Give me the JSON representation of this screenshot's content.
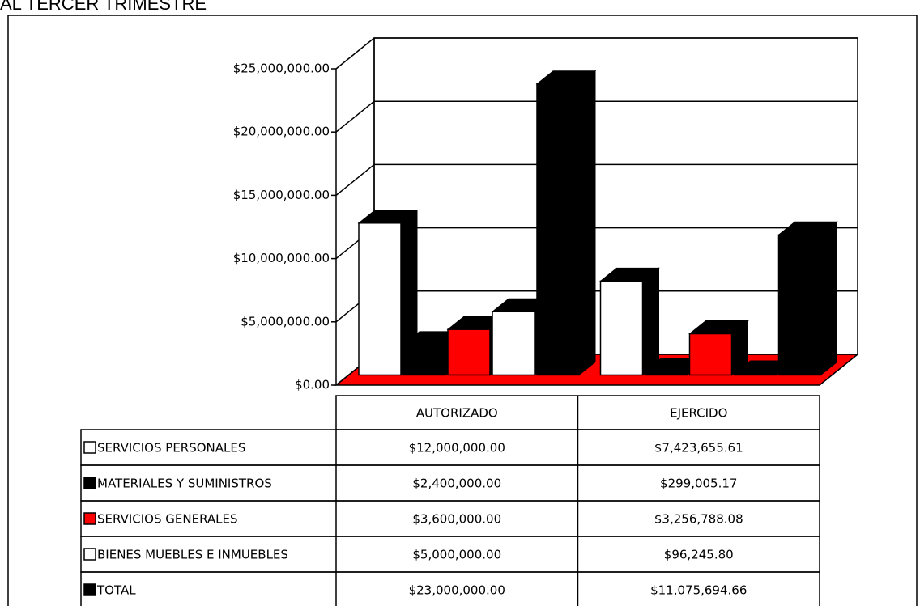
{
  "chart_data": {
    "type": "bar3d",
    "title": "AL TERCER TRIMESTRE",
    "categories": [
      "AUTORIZADO",
      "EJERCIDO"
    ],
    "series": [
      {
        "name": "SERVICIOS PERSONALES",
        "color": "#ffffff",
        "values": [
          12000000,
          7423655.61
        ],
        "value_labels": [
          "$12,000,000.00",
          "$7,423,655.61"
        ]
      },
      {
        "name": "MATERIALES Y SUMINISTROS",
        "color": "#000000",
        "values": [
          2400000,
          299005.17
        ],
        "value_labels": [
          "$2,400,000.00",
          "$299,005.17"
        ]
      },
      {
        "name": "SERVICIOS GENERALES",
        "color": "#ff0000",
        "values": [
          3600000,
          3256788.08
        ],
        "value_labels": [
          "$3,600,000.00",
          "$3,256,788.08"
        ]
      },
      {
        "name": "BIENES MUEBLES E INMUEBLES",
        "color": "#ffffff",
        "values": [
          5000000,
          96245.8
        ],
        "value_labels": [
          "$5,000,000.00",
          "$96,245.80"
        ]
      },
      {
        "name": "TOTAL",
        "color": "#000000",
        "values": [
          23000000,
          11075694.66
        ],
        "value_labels": [
          "$23,000,000.00",
          "$11,075,694.66"
        ]
      }
    ],
    "ylim": [
      0,
      25000000
    ],
    "yticks": [
      {
        "value": 0,
        "label": "$0.00"
      },
      {
        "value": 5000000,
        "label": "$5,000,000.00"
      },
      {
        "value": 10000000,
        "label": "$10,000,000.00"
      },
      {
        "value": 15000000,
        "label": "$15,000,000.00"
      },
      {
        "value": 20000000,
        "label": "$20,000,000.00"
      },
      {
        "value": 25000000,
        "label": "$25,000,000.00"
      }
    ],
    "grid": true,
    "floor_color": "#ff0000"
  }
}
